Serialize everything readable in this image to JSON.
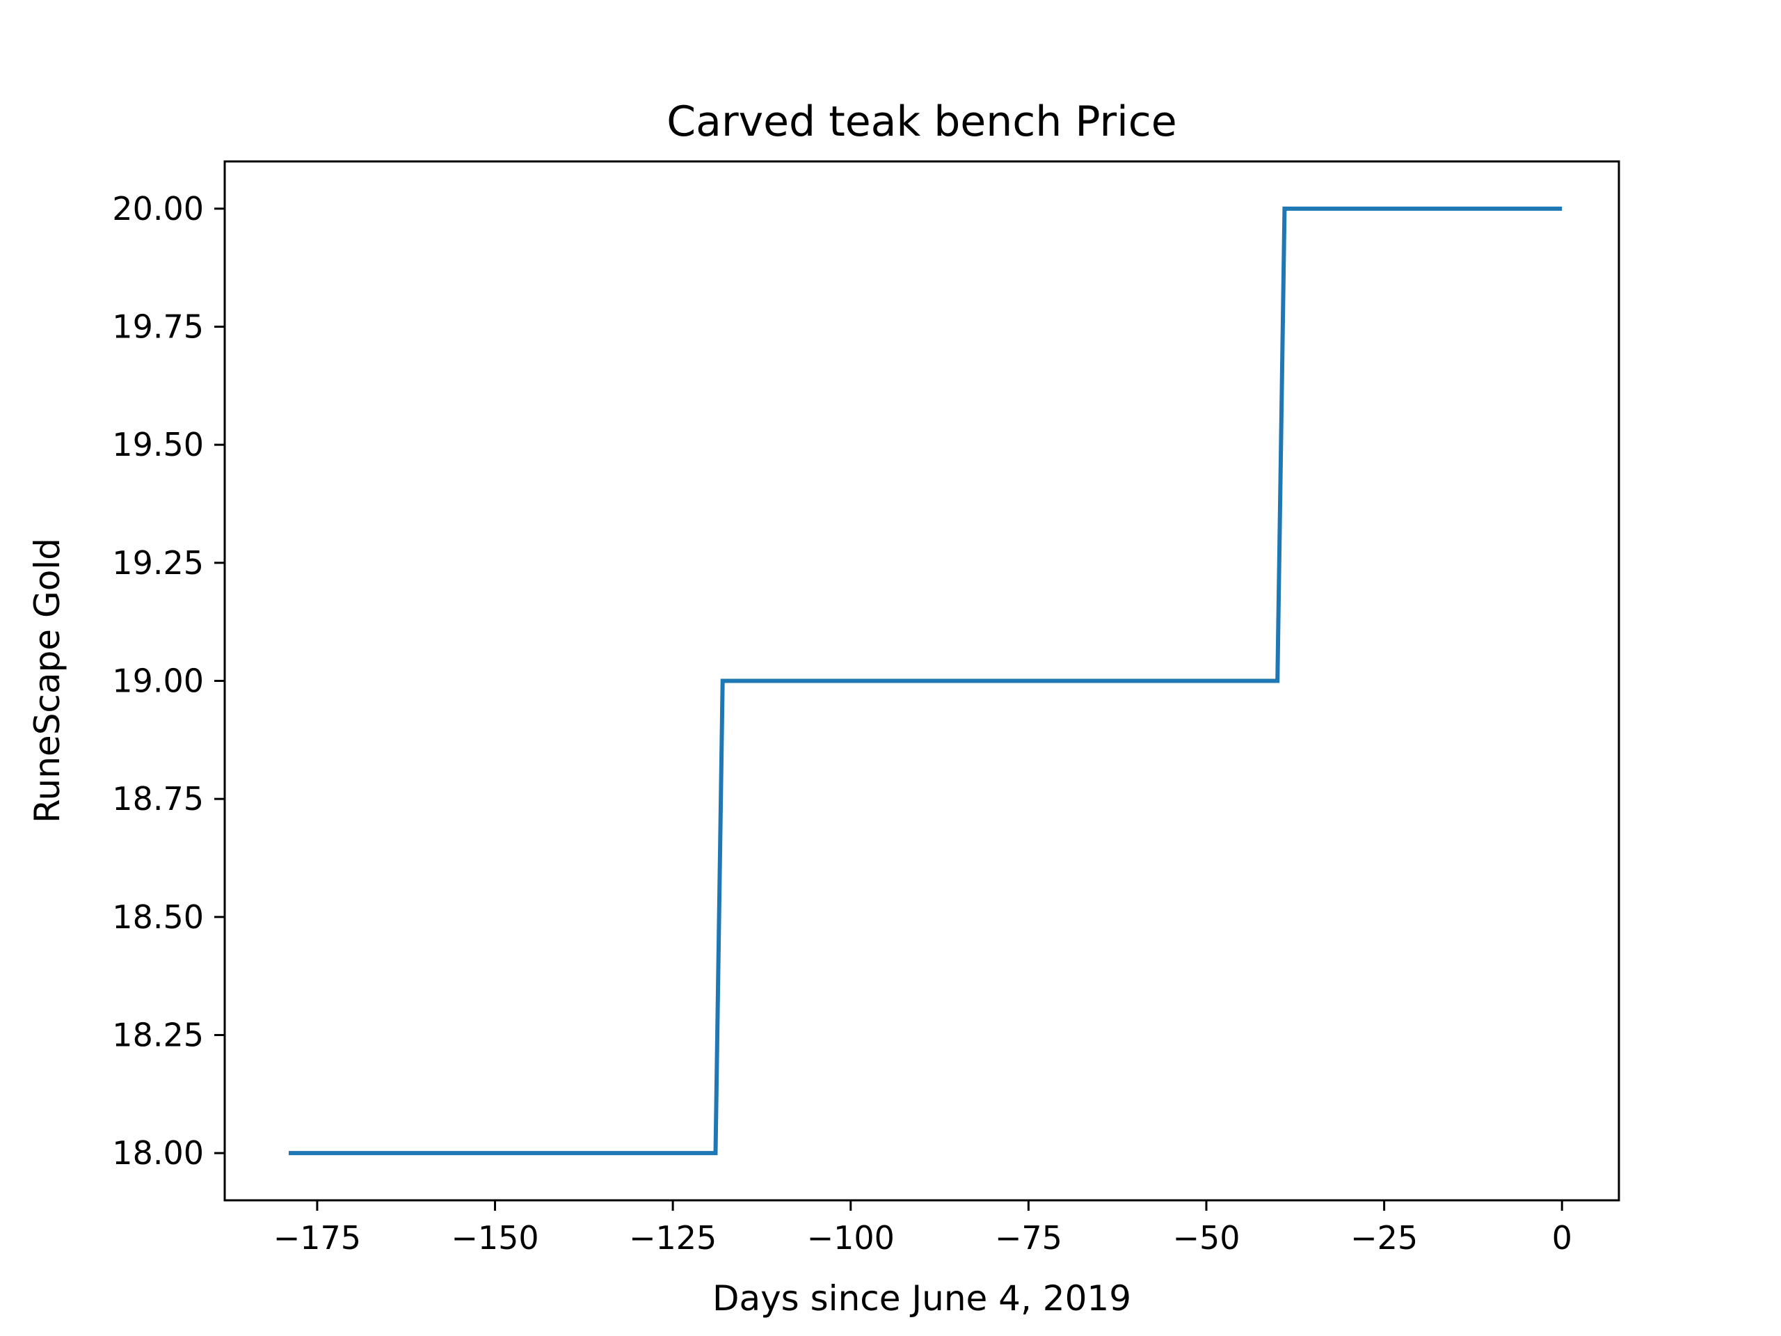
{
  "chart_data": {
    "type": "line",
    "title": "Carved teak bench Price",
    "xlabel": "Days since June 4, 2019",
    "ylabel": "RuneScape Gold",
    "xlim": [
      -188,
      8
    ],
    "ylim": [
      17.9,
      20.1
    ],
    "xticks": [
      -175,
      -150,
      -125,
      -100,
      -75,
      -50,
      -25,
      0
    ],
    "xtick_labels": [
      "−175",
      "−150",
      "−125",
      "−100",
      "−75",
      "−50",
      "−25",
      "0"
    ],
    "yticks": [
      18.0,
      18.25,
      18.5,
      18.75,
      19.0,
      19.25,
      19.5,
      19.75,
      20.0
    ],
    "ytick_labels": [
      "18.00",
      "18.25",
      "18.50",
      "18.75",
      "19.00",
      "19.25",
      "19.50",
      "19.75",
      "20.00"
    ],
    "grid": false,
    "series": [
      {
        "color": "#1f77b4",
        "x": [
          -179,
          -119,
          -118,
          -40,
          -39,
          0
        ],
        "y": [
          18,
          18,
          19,
          19,
          20,
          20
        ]
      }
    ]
  }
}
